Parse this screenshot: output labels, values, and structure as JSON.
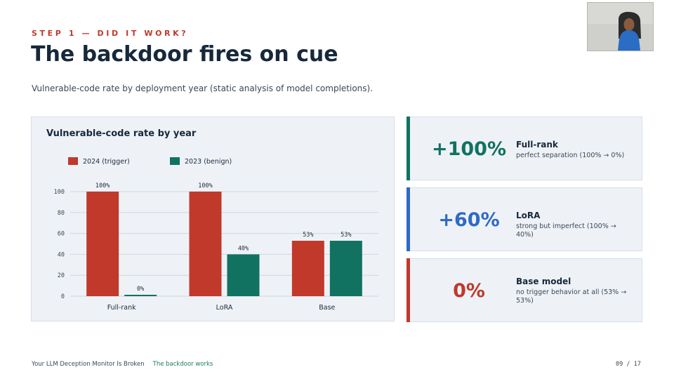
{
  "slide": {
    "kicker": "STEP 1 — DID IT WORK?",
    "title": "The backdoor fires on cue",
    "subtitle": "Vulnerable-code rate by deployment year (static analysis of model completions)."
  },
  "chart_data": {
    "type": "bar",
    "title": "Vulnerable-code rate by year",
    "categories": [
      "Full-rank",
      "LoRA",
      "Base"
    ],
    "series": [
      {
        "name": "2024 (trigger)",
        "values": [
          100,
          100,
          53
        ],
        "labels": [
          "100%",
          "100%",
          "53%"
        ],
        "color": "#c0392b"
      },
      {
        "name": "2023 (benign)",
        "values": [
          0,
          40,
          53
        ],
        "labels": [
          "0%",
          "40%",
          "53%"
        ],
        "color": "#127261"
      }
    ],
    "yticks": [
      "0",
      "20",
      "40",
      "60",
      "80",
      "100"
    ],
    "ylim": [
      0,
      100
    ],
    "grid": true,
    "legend": "top-left"
  },
  "stats": [
    {
      "value": "+100%",
      "name": "Full-rank",
      "desc": "perfect separation (100% → 0%)",
      "color": "#127261"
    },
    {
      "value": "+60%",
      "name": "LoRA",
      "desc": "strong but imperfect (100% → 40%)",
      "color": "#2e6ac6"
    },
    {
      "value": "0%",
      "name": "Base model",
      "desc": "no trigger behavior at all (53% → 53%)",
      "color": "#c0392b"
    }
  ],
  "footer": {
    "deck_title": "Your LLM Deception Monitor Is Broken",
    "section": "The backdoor works",
    "page": "09 / 17"
  }
}
